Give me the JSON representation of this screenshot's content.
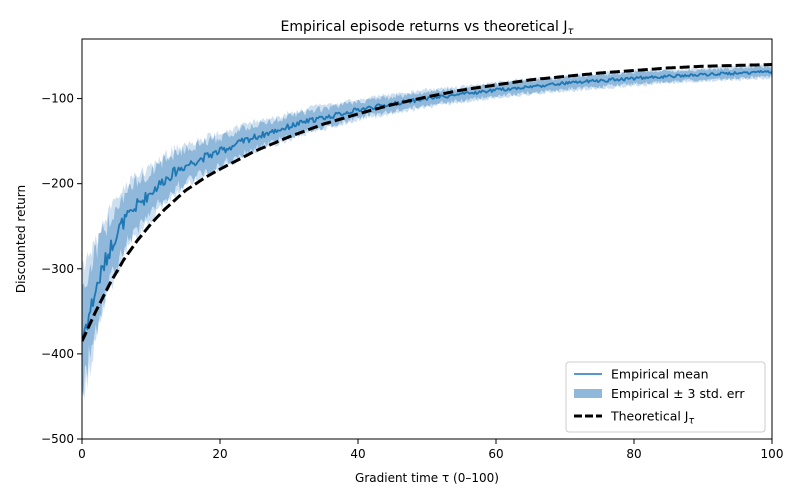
{
  "chart_data": {
    "type": "line",
    "title": "Empirical episode returns vs theoretical J",
    "title_subscript": "τ",
    "xlabel": "Gradient time τ (0–100)",
    "ylabel": "Discounted return",
    "xlim": [
      0,
      100
    ],
    "ylim": [
      -500,
      -30
    ],
    "x_ticks": [
      0,
      20,
      40,
      60,
      80,
      100
    ],
    "x_tick_labels": [
      "0",
      "20",
      "40",
      "60",
      "80",
      "100"
    ],
    "y_ticks": [
      -500,
      -400,
      -300,
      -200,
      -100
    ],
    "y_tick_labels": [
      "−500",
      "−400",
      "−300",
      "−200",
      "−100"
    ],
    "grid": false,
    "legend_position": "lower-right",
    "colors": {
      "empirical": "#1f77b4",
      "band": "#8fb8da",
      "band_light": "#b9d3ea",
      "theoretical": "#000000"
    },
    "series": [
      {
        "name": "Empirical mean",
        "style": "solid",
        "x": [
          0,
          1,
          2,
          3,
          4,
          5,
          6,
          7,
          8,
          9,
          10,
          12,
          14,
          16,
          18,
          20,
          22,
          24,
          26,
          28,
          30,
          32,
          34,
          36,
          38,
          40,
          43,
          46,
          50,
          55,
          60,
          65,
          70,
          75,
          80,
          85,
          90,
          95,
          100
        ],
        "values": [
          -380,
          -355,
          -325,
          -300,
          -278,
          -258,
          -245,
          -236,
          -225,
          -218,
          -210,
          -195,
          -183,
          -175,
          -168,
          -162,
          -155,
          -148,
          -143,
          -138,
          -133,
          -128,
          -124,
          -121,
          -117,
          -113,
          -109,
          -105,
          -100,
          -95,
          -90,
          -86,
          -82,
          -79,
          -76,
          -74,
          -72,
          -70,
          -68
        ]
      },
      {
        "name": "Empirical ± 3 std. err",
        "style": "band",
        "x": [
          0,
          1,
          2,
          3,
          4,
          5,
          6,
          7,
          8,
          9,
          10,
          12,
          14,
          16,
          18,
          20,
          22,
          24,
          26,
          28,
          30,
          32,
          34,
          36,
          38,
          40,
          43,
          46,
          50,
          55,
          60,
          65,
          70,
          75,
          80,
          85,
          90,
          95,
          100
        ],
        "lower": [
          -440,
          -405,
          -370,
          -340,
          -314,
          -292,
          -276,
          -264,
          -252,
          -244,
          -234,
          -217,
          -203,
          -193,
          -185,
          -178,
          -170,
          -162,
          -156,
          -150,
          -145,
          -139,
          -135,
          -131,
          -127,
          -122,
          -118,
          -113,
          -108,
          -102,
          -97,
          -93,
          -89,
          -86,
          -83,
          -80,
          -78,
          -76,
          -74
        ],
        "upper": [
          -320,
          -305,
          -280,
          -260,
          -242,
          -224,
          -214,
          -208,
          -198,
          -192,
          -186,
          -173,
          -163,
          -157,
          -151,
          -146,
          -140,
          -134,
          -130,
          -126,
          -121,
          -117,
          -113,
          -111,
          -107,
          -104,
          -100,
          -97,
          -92,
          -88,
          -83,
          -79,
          -75,
          -72,
          -69,
          -68,
          -66,
          -64,
          -62
        ]
      },
      {
        "name": "Theoretical J",
        "name_subscript": "τ",
        "style": "dashed",
        "x": [
          0,
          2,
          4,
          6,
          8,
          10,
          12,
          15,
          18,
          20,
          25,
          30,
          35,
          40,
          45,
          50,
          55,
          60,
          65,
          70,
          75,
          80,
          85,
          90,
          95,
          100
        ],
        "values": [
          -385,
          -350,
          -318,
          -290,
          -267,
          -247,
          -230,
          -208,
          -192,
          -183,
          -162,
          -145,
          -130,
          -118,
          -107,
          -98,
          -90,
          -84,
          -78,
          -74,
          -70,
          -67,
          -64,
          -62,
          -61,
          -60
        ]
      }
    ]
  }
}
